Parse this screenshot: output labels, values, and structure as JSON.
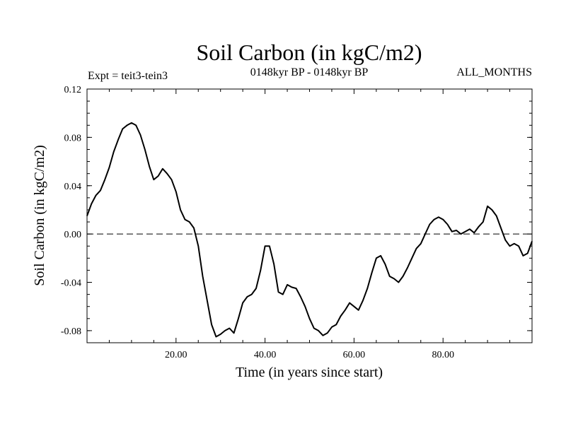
{
  "chart_data": {
    "type": "line",
    "title": "Soil Carbon (in kgC/m2)",
    "subtitle": "0148kyr BP - 0148kyr BP",
    "left_note": "Expt = teit3-tein3",
    "right_note": "ALL_MONTHS",
    "xlabel": "Time (in years since start)",
    "ylabel": "Soil Carbon (in kgC/m2)",
    "xlim": [
      0,
      100
    ],
    "ylim": [
      -0.09,
      0.12
    ],
    "xticks": [
      20,
      40,
      60,
      80
    ],
    "xtick_labels": [
      "20.00",
      "40.00",
      "60.00",
      "80.00"
    ],
    "yticks": [
      0.12,
      0.08,
      0.04,
      0.0,
      -0.04,
      -0.08
    ],
    "ytick_labels": [
      "0.12",
      "0.08",
      "0.04",
      "0.00",
      "-0.04",
      "-0.08"
    ],
    "reference_line": 0.0,
    "series": [
      {
        "name": "Soil Carbon",
        "x": [
          0,
          1,
          2,
          3,
          4,
          5,
          6,
          7,
          8,
          9,
          10,
          11,
          12,
          13,
          14,
          15,
          16,
          17,
          18,
          19,
          20,
          21,
          22,
          23,
          24,
          25,
          26,
          27,
          28,
          29,
          30,
          31,
          32,
          33,
          34,
          35,
          36,
          37,
          38,
          39,
          40,
          41,
          42,
          43,
          44,
          45,
          46,
          47,
          48,
          49,
          50,
          51,
          52,
          53,
          54,
          55,
          56,
          57,
          58,
          59,
          60,
          61,
          62,
          63,
          64,
          65,
          66,
          67,
          68,
          69,
          70,
          71,
          72,
          73,
          74,
          75,
          76,
          77,
          78,
          79,
          80,
          81,
          82,
          83,
          84,
          85,
          86,
          87,
          88,
          89,
          90,
          91,
          92,
          93,
          94,
          95,
          96,
          97,
          98,
          99,
          100
        ],
        "values": [
          0.015,
          0.025,
          0.032,
          0.036,
          0.045,
          0.055,
          0.068,
          0.078,
          0.087,
          0.09,
          0.092,
          0.09,
          0.082,
          0.07,
          0.056,
          0.045,
          0.048,
          0.054,
          0.05,
          0.045,
          0.035,
          0.02,
          0.012,
          0.01,
          0.005,
          -0.01,
          -0.035,
          -0.055,
          -0.075,
          -0.085,
          -0.083,
          -0.08,
          -0.078,
          -0.082,
          -0.07,
          -0.057,
          -0.052,
          -0.05,
          -0.045,
          -0.03,
          -0.01,
          -0.01,
          -0.025,
          -0.048,
          -0.05,
          -0.042,
          -0.044,
          -0.045,
          -0.052,
          -0.06,
          -0.07,
          -0.078,
          -0.08,
          -0.084,
          -0.082,
          -0.077,
          -0.075,
          -0.068,
          -0.063,
          -0.057,
          -0.06,
          -0.063,
          -0.055,
          -0.045,
          -0.032,
          -0.02,
          -0.018,
          -0.025,
          -0.035,
          -0.037,
          -0.04,
          -0.035,
          -0.028,
          -0.02,
          -0.012,
          -0.008,
          0.0,
          0.008,
          0.012,
          0.014,
          0.012,
          0.008,
          0.002,
          0.003,
          0.0,
          0.002,
          0.004,
          0.001,
          0.006,
          0.01,
          0.023,
          0.02,
          0.015,
          0.005,
          -0.005,
          -0.01,
          -0.008,
          -0.01,
          -0.018,
          -0.016,
          -0.006
        ]
      }
    ]
  }
}
